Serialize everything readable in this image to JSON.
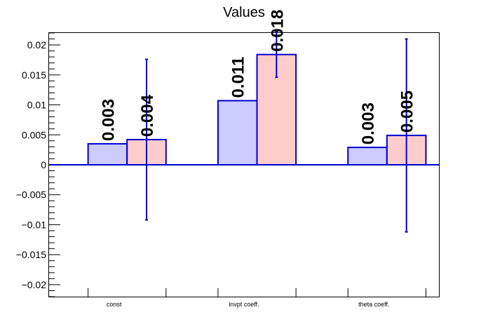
{
  "chart_data": {
    "type": "bar",
    "title": "Values",
    "categories": [
      "const",
      "invpt coeff.",
      "theta coeff."
    ],
    "ylim": [
      -0.022,
      0.022
    ],
    "yticks": [
      "0.02",
      "0.015",
      "0.01",
      "0.005",
      "0",
      "−0.005",
      "−0.01",
      "−0.015",
      "−0.02"
    ],
    "ytick_values": [
      0.02,
      0.015,
      0.01,
      0.005,
      0,
      -0.005,
      -0.01,
      -0.015,
      -0.02
    ],
    "grid": false,
    "series": [
      {
        "values": [
          0.0035,
          0.0107,
          0.0029
        ],
        "labels": [
          "0.003",
          "0.011",
          "0.003"
        ],
        "fill": "#ccccff",
        "stroke": "#0000cc"
      },
      {
        "values": [
          0.0042,
          0.0184,
          0.0049
        ],
        "labels": [
          "0.004",
          "0.018",
          "0.005"
        ],
        "error": [
          [
            -0.0092,
            0.0176
          ],
          [
            0.0146,
            0.0222
          ],
          [
            -0.0112,
            0.021
          ]
        ],
        "fill": "#ffcccc",
        "stroke": "#0000cc"
      }
    ]
  }
}
